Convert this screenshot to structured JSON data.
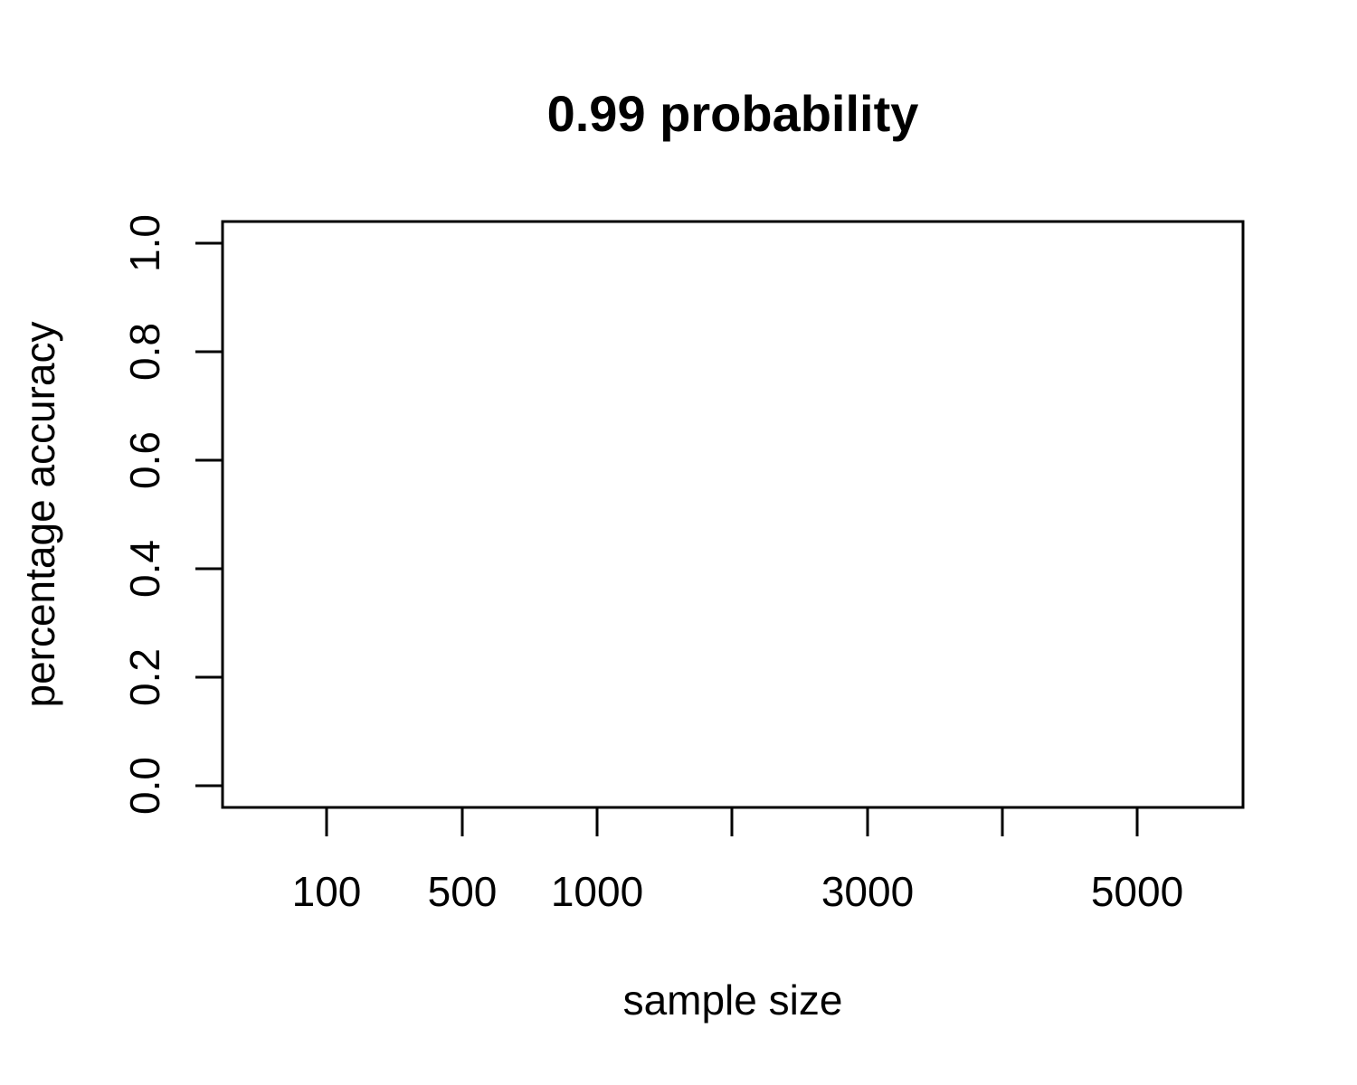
{
  "chart_data": {
    "type": "line",
    "title": "0.99 probability",
    "xlabel": "sample size",
    "ylabel": "percentage accuracy",
    "x_ticks": [
      {
        "value": 100,
        "label": "100"
      },
      {
        "value": 500,
        "label": "500"
      },
      {
        "value": 1000,
        "label": "1000"
      },
      {
        "value": 2000,
        "label": ""
      },
      {
        "value": 3000,
        "label": "3000"
      },
      {
        "value": 4000,
        "label": ""
      },
      {
        "value": 5000,
        "label": "5000"
      }
    ],
    "y_ticks": [
      {
        "value": 0.0,
        "label": "0.0"
      },
      {
        "value": 0.2,
        "label": "0.2"
      },
      {
        "value": 0.4,
        "label": "0.4"
      },
      {
        "value": 0.6,
        "label": "0.6"
      },
      {
        "value": 0.8,
        "label": "0.8"
      },
      {
        "value": 1.0,
        "label": "1.0"
      }
    ],
    "ylim": [
      -0.04,
      1.04
    ],
    "grid": false,
    "series": []
  }
}
